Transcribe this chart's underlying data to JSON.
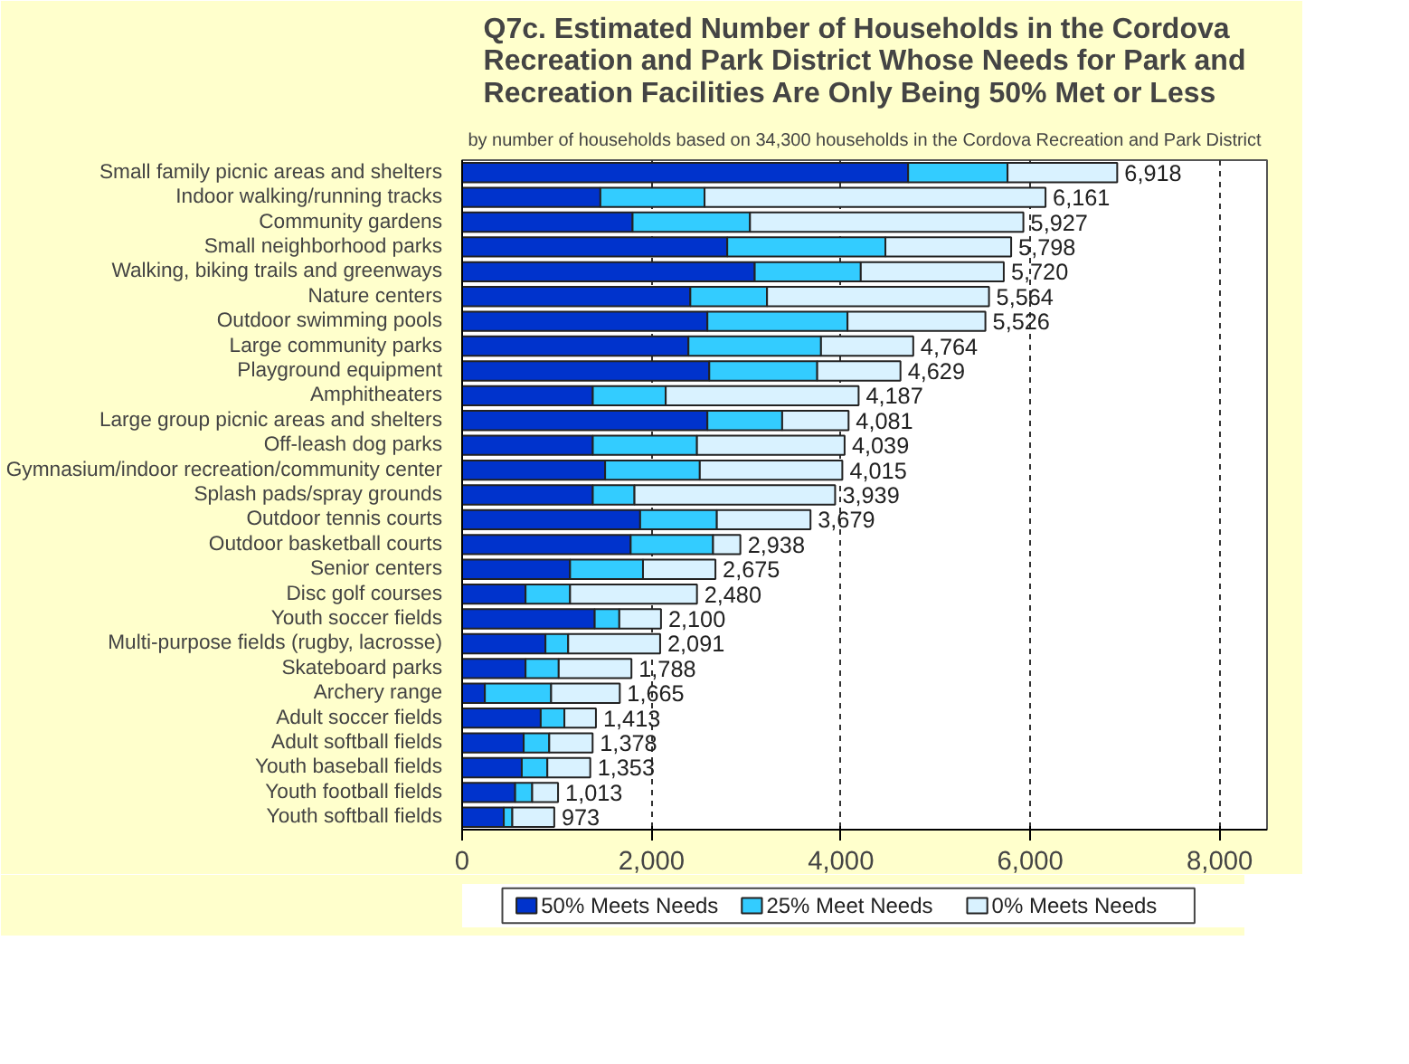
{
  "chart_data": {
    "type": "bar",
    "orientation": "horizontal",
    "stacked": true,
    "title": "Q7c. Estimated Number of Households in the Cordova Recreation and Park District Whose Needs for Park and Recreation Facilities Are Only Being 50% Met or Less",
    "subtitle": "by number of households based on 34,300 households in the Cordova Recreation and Park District",
    "categories": [
      "Small family picnic areas and shelters",
      "Indoor walking/running tracks",
      "Community gardens",
      "Small neighborhood parks",
      "Walking, biking trails and greenways",
      "Nature centers",
      "Outdoor swimming pools",
      "Large community parks",
      "Playground equipment",
      "Amphitheaters",
      "Large group picnic areas and shelters",
      "Off-leash dog parks",
      "Gymnasium/indoor recreation/community center",
      "Splash pads/spray grounds",
      "Outdoor tennis courts",
      "Outdoor basketball courts",
      "Senior centers",
      "Disc golf courses",
      "Youth soccer fields",
      "Multi-purpose fields (rugby, lacrosse)",
      "Skateboard parks",
      "Archery range",
      "Adult soccer fields",
      "Adult softball fields",
      "Youth baseball fields",
      "Youth football fields",
      "Youth softball fields"
    ],
    "series": [
      {
        "name": "50% Meets Needs",
        "color": "#0033cc",
        "values": [
          4710,
          1460,
          1800,
          2800,
          3090,
          2410,
          2590,
          2390,
          2610,
          1380,
          2590,
          1380,
          1510,
          1380,
          1880,
          1780,
          1140,
          670,
          1400,
          880,
          670,
          240,
          830,
          650,
          630,
          560,
          440
        ]
      },
      {
        "name": "25% Meet Needs",
        "color": "#33ccff",
        "values": [
          1050,
          1100,
          1240,
          1670,
          1120,
          810,
          1480,
          1400,
          1140,
          770,
          790,
          1100,
          1000,
          440,
          810,
          870,
          770,
          470,
          260,
          240,
          350,
          700,
          250,
          270,
          270,
          180,
          90
        ]
      },
      {
        "name": "0% Meets Needs",
        "color": "#d9f2ff",
        "values": [
          1158,
          3601,
          2887,
          1328,
          1510,
          2344,
          1456,
          974,
          879,
          2037,
          701,
          1559,
          1505,
          2119,
          989,
          288,
          765,
          1340,
          440,
          971,
          768,
          725,
          333,
          458,
          453,
          273,
          443
        ]
      }
    ],
    "totals": [
      "6,918",
      "6,161",
      "5,927",
      "5,798",
      "5,720",
      "5,564",
      "5,526",
      "4,764",
      "4,629",
      "4,187",
      "4,081",
      "4,039",
      "4,015",
      "3,939",
      "3,679",
      "2,938",
      "2,675",
      "2,480",
      "2,100",
      "2,091",
      "1,788",
      "1,665",
      "1,413",
      "1,378",
      "1,353",
      "1,013",
      "973"
    ],
    "xlim": [
      0,
      8500
    ],
    "xticks": [
      {
        "value": 0,
        "label": "0"
      },
      {
        "value": 2000,
        "label": "2,000"
      },
      {
        "value": 4000,
        "label": "4,000"
      },
      {
        "value": 6000,
        "label": "6,000"
      },
      {
        "value": 8000,
        "label": "8,000"
      }
    ],
    "grid": "x",
    "legend": "bottom"
  }
}
